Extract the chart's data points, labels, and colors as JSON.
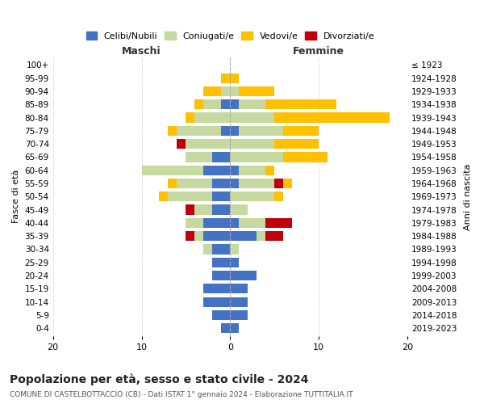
{
  "age_groups": [
    "0-4",
    "5-9",
    "10-14",
    "15-19",
    "20-24",
    "25-29",
    "30-34",
    "35-39",
    "40-44",
    "45-49",
    "50-54",
    "55-59",
    "60-64",
    "65-69",
    "70-74",
    "75-79",
    "80-84",
    "85-89",
    "90-94",
    "95-99",
    "100+"
  ],
  "birth_years": [
    "2019-2023",
    "2014-2018",
    "2009-2013",
    "2004-2008",
    "1999-2003",
    "1994-1998",
    "1989-1993",
    "1984-1988",
    "1979-1983",
    "1974-1978",
    "1969-1973",
    "1964-1968",
    "1959-1963",
    "1954-1958",
    "1949-1953",
    "1944-1948",
    "1939-1943",
    "1934-1938",
    "1929-1933",
    "1924-1928",
    "≤ 1923"
  ],
  "maschi_celibi": [
    1,
    2,
    3,
    3,
    2,
    2,
    2,
    3,
    3,
    2,
    2,
    2,
    3,
    2,
    0,
    1,
    0,
    1,
    0,
    0,
    0
  ],
  "maschi_coniugati": [
    0,
    0,
    0,
    0,
    0,
    0,
    1,
    1,
    2,
    2,
    5,
    4,
    7,
    3,
    5,
    5,
    4,
    2,
    1,
    0,
    0
  ],
  "maschi_vedovi": [
    0,
    0,
    0,
    0,
    0,
    0,
    0,
    0,
    0,
    0,
    1,
    1,
    0,
    0,
    0,
    1,
    1,
    1,
    2,
    1,
    0
  ],
  "maschi_divorziati": [
    0,
    0,
    0,
    0,
    0,
    0,
    0,
    1,
    0,
    1,
    0,
    0,
    0,
    0,
    1,
    0,
    0,
    0,
    0,
    0,
    0
  ],
  "femmine_celibi": [
    1,
    2,
    2,
    2,
    3,
    1,
    0,
    3,
    1,
    0,
    0,
    1,
    1,
    0,
    0,
    1,
    0,
    1,
    0,
    0,
    0
  ],
  "femmine_coniugati": [
    0,
    0,
    0,
    0,
    0,
    0,
    1,
    1,
    3,
    2,
    5,
    4,
    3,
    6,
    5,
    5,
    5,
    3,
    1,
    0,
    0
  ],
  "femmine_vedovi": [
    0,
    0,
    0,
    0,
    0,
    0,
    0,
    0,
    0,
    0,
    1,
    1,
    1,
    5,
    5,
    4,
    13,
    8,
    4,
    1,
    0
  ],
  "femmine_divorziati": [
    0,
    0,
    0,
    0,
    0,
    0,
    0,
    2,
    3,
    0,
    0,
    1,
    0,
    0,
    0,
    0,
    0,
    0,
    0,
    0,
    0
  ],
  "colors": {
    "celibi": "#4472C4",
    "coniugati": "#c5d9a0",
    "vedovi": "#ffc000",
    "divorziati": "#c0000b"
  },
  "title": "Popolazione per età, sesso e stato civile - 2024",
  "subtitle": "COMUNE DI CASTELBOTTACCIO (CB) - Dati ISTAT 1° gennaio 2024 - Elaborazione TUTTITALIA.IT",
  "xlabel_maschi": "Maschi",
  "xlabel_femmine": "Femmine",
  "ylabel_left": "Fasce di età",
  "ylabel_right": "Anni di nascita",
  "xlim": 20,
  "bg_color": "#ffffff",
  "grid_color": "#cccccc"
}
